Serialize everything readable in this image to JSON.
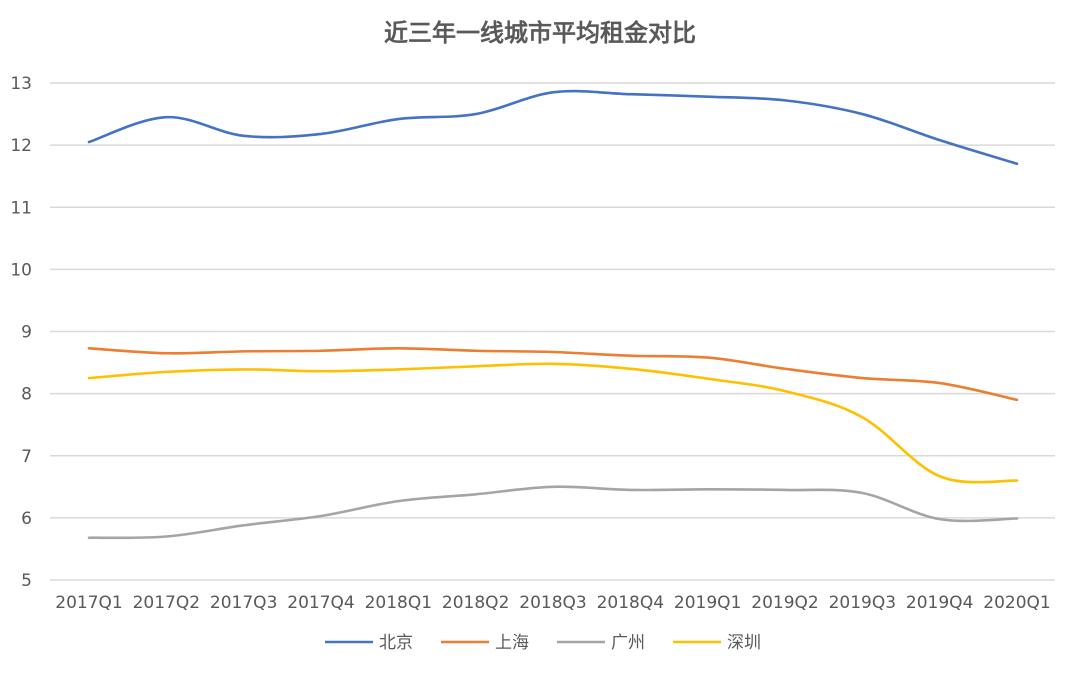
{
  "chart_data": {
    "type": "line",
    "title": "近三年一线城市平均租金对比",
    "xlabel": "",
    "ylabel": "",
    "ylim": [
      5,
      13
    ],
    "yticks": [
      5,
      6,
      7,
      8,
      9,
      10,
      11,
      12,
      13
    ],
    "grid": true,
    "smooth": true,
    "legend_position": "bottom",
    "categories": [
      "2017Q1",
      "2017Q2",
      "2017Q3",
      "2017Q4",
      "2018Q1",
      "2018Q2",
      "2018Q3",
      "2018Q4",
      "2019Q1",
      "2019Q2",
      "2019Q3",
      "2019Q4",
      "2020Q1"
    ],
    "series": [
      {
        "name": "北京",
        "color": "#4472C4",
        "values": [
          12.05,
          12.45,
          12.15,
          12.18,
          12.42,
          12.5,
          12.85,
          12.82,
          12.78,
          12.72,
          12.5,
          12.08,
          11.7
        ]
      },
      {
        "name": "上海",
        "color": "#ED7D31",
        "values": [
          8.73,
          8.65,
          8.68,
          8.69,
          8.73,
          8.69,
          8.67,
          8.61,
          8.58,
          8.4,
          8.25,
          8.17,
          7.9
        ]
      },
      {
        "name": "广州",
        "color": "#A5A5A5",
        "values": [
          5.68,
          5.7,
          5.88,
          6.03,
          6.27,
          6.38,
          6.5,
          6.45,
          6.46,
          6.45,
          6.4,
          5.98,
          5.99
        ]
      },
      {
        "name": "深圳",
        "color": "#FFC000",
        "values": [
          8.25,
          8.35,
          8.39,
          8.36,
          8.39,
          8.44,
          8.48,
          8.4,
          8.24,
          8.04,
          7.62,
          6.67,
          6.6
        ]
      }
    ]
  }
}
